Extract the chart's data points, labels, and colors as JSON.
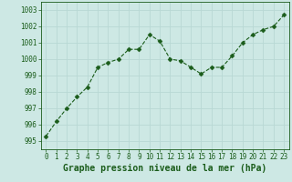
{
  "x": [
    0,
    1,
    2,
    3,
    4,
    5,
    6,
    7,
    8,
    9,
    10,
    11,
    12,
    13,
    14,
    15,
    16,
    17,
    18,
    19,
    20,
    21,
    22,
    23
  ],
  "y": [
    995.3,
    996.2,
    997.0,
    997.7,
    998.3,
    999.5,
    999.8,
    1000.0,
    1000.6,
    1000.6,
    1001.5,
    1001.1,
    1000.0,
    999.9,
    999.5,
    999.1,
    999.5,
    999.5,
    1000.2,
    1001.0,
    1001.5,
    1001.8,
    1002.0,
    1002.7
  ],
  "line_color": "#1a5c1a",
  "marker": "D",
  "marker_size": 2.5,
  "background_color": "#cde8e4",
  "grid_color": "#b8d8d4",
  "xlabel": "Graphe pression niveau de la mer (hPa)",
  "xlabel_fontsize": 7,
  "xlabel_color": "#1a5c1a",
  "ylim": [
    994.5,
    1003.5
  ],
  "xlim": [
    -0.5,
    23.5
  ],
  "yticks": [
    995,
    996,
    997,
    998,
    999,
    1000,
    1001,
    1002,
    1003
  ],
  "xticks": [
    0,
    1,
    2,
    3,
    4,
    5,
    6,
    7,
    8,
    9,
    10,
    11,
    12,
    13,
    14,
    15,
    16,
    17,
    18,
    19,
    20,
    21,
    22,
    23
  ],
  "tick_fontsize": 5.5,
  "tick_color": "#1a5c1a",
  "linewidth": 0.8
}
